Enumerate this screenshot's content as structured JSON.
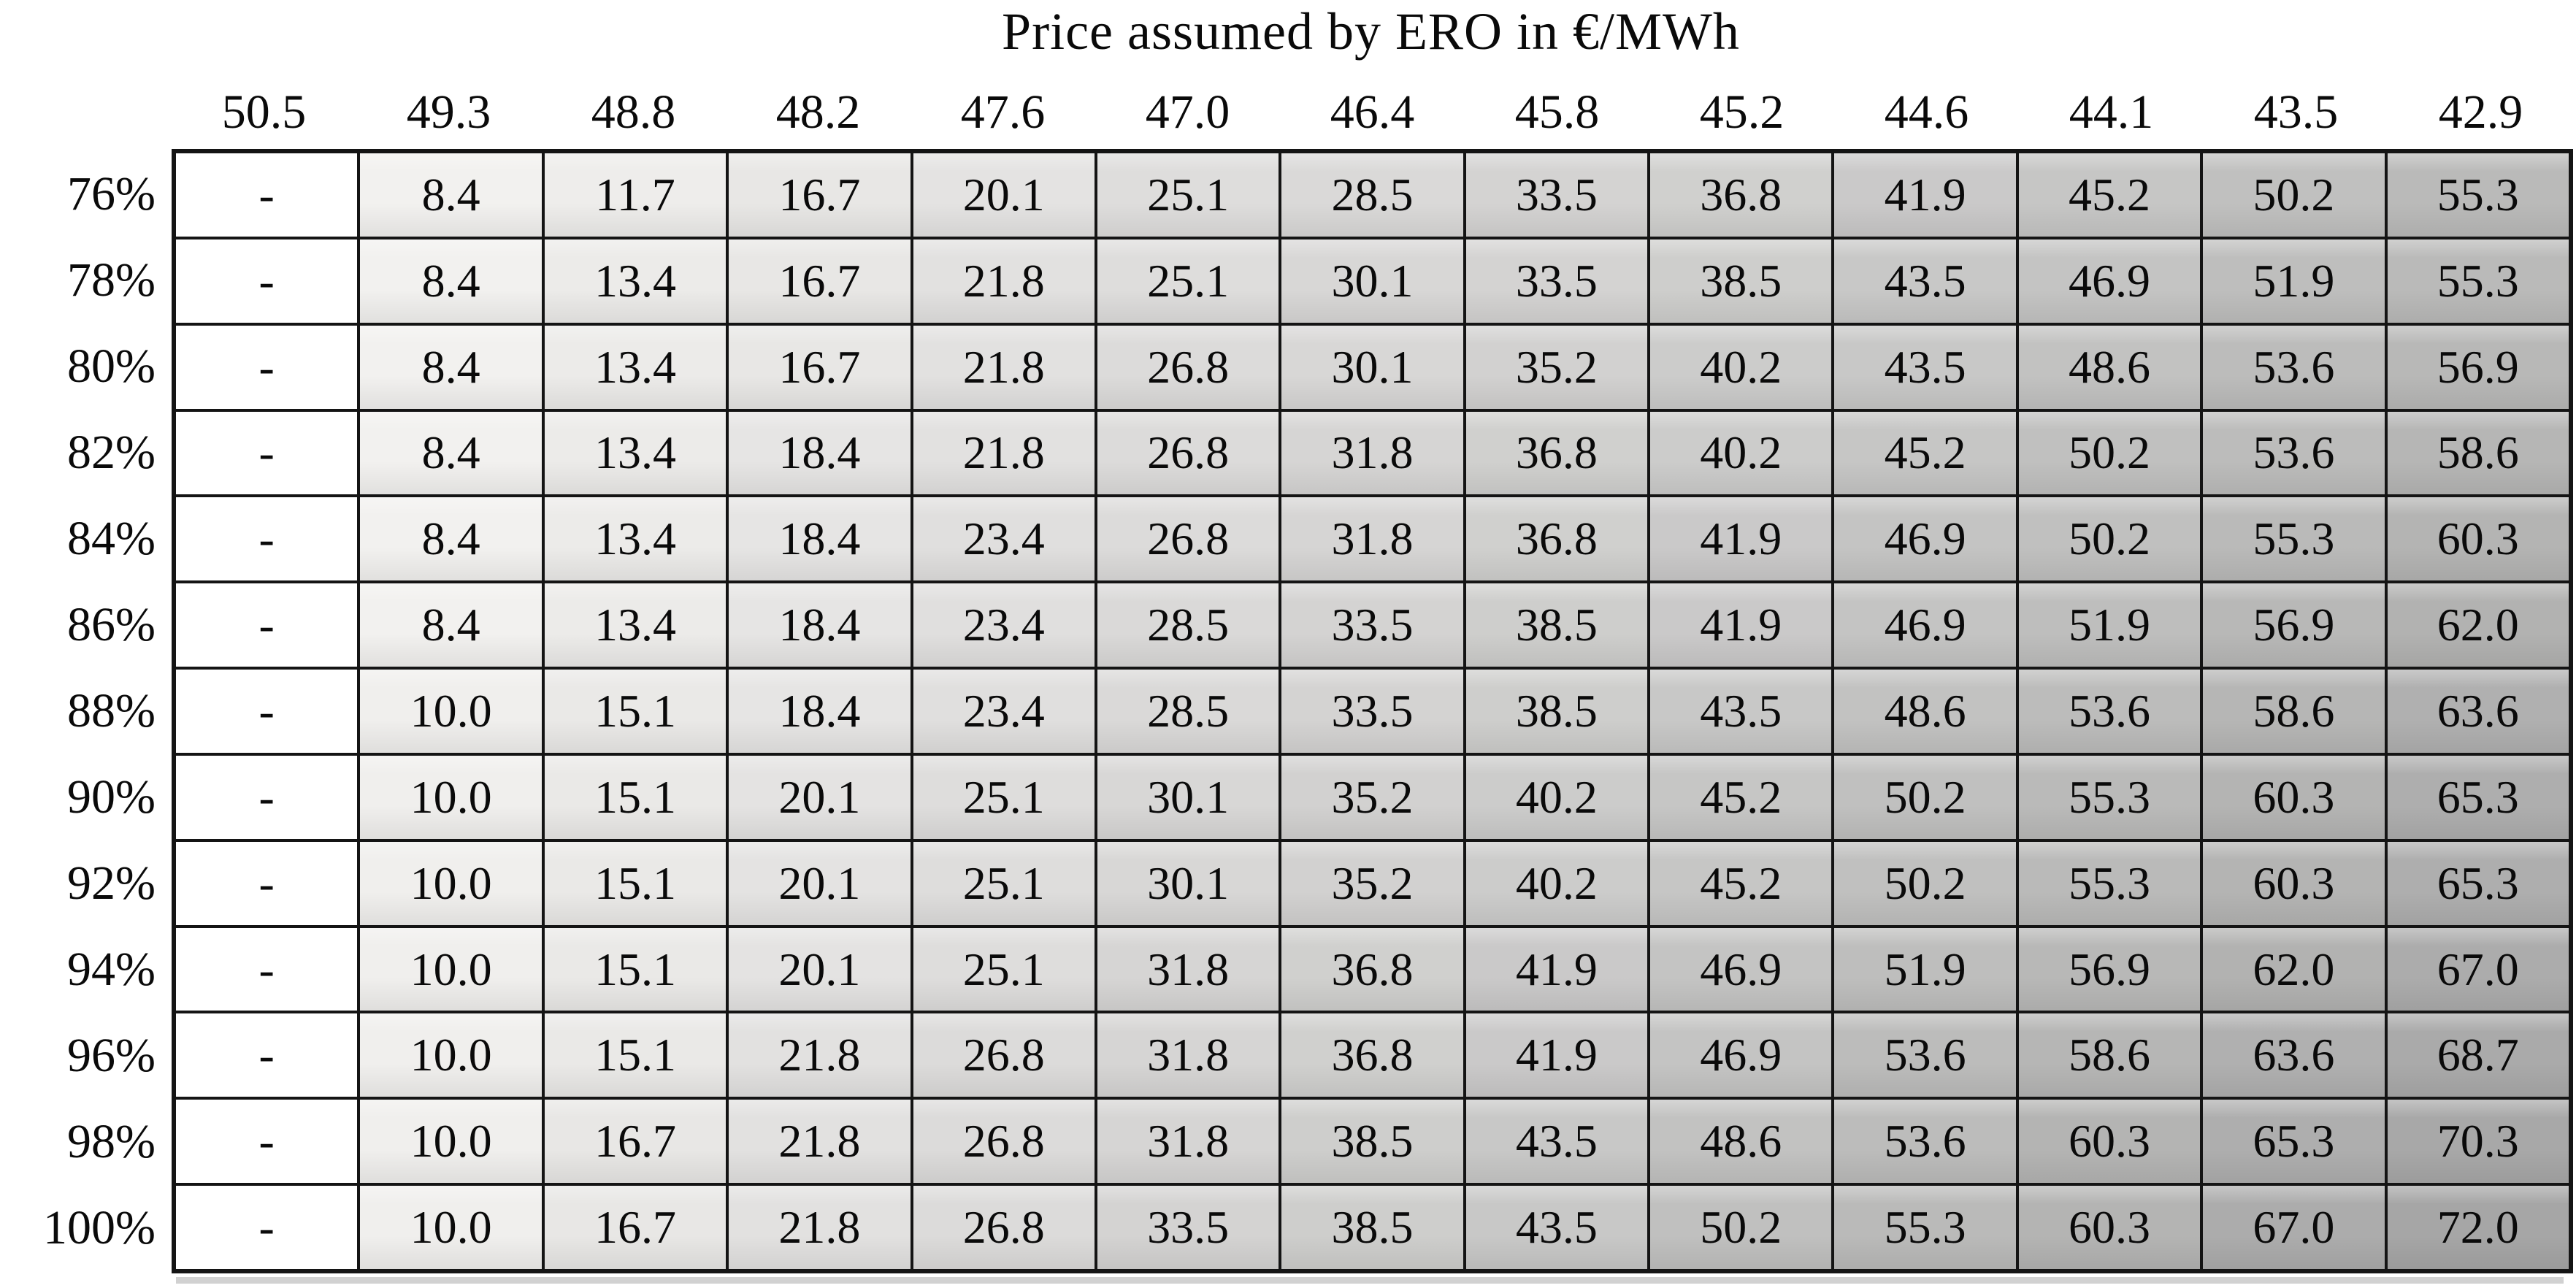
{
  "title": "Price assumed by ERO in €/MWh",
  "chart_data": {
    "type": "heatmap",
    "title": "Price assumed by ERO in €/MWh",
    "columns_axis_label": "Price assumed by ERO in €/MWh",
    "columns": [
      "50.5",
      "49.3",
      "48.8",
      "48.2",
      "47.6",
      "47.0",
      "46.4",
      "45.8",
      "45.2",
      "44.6",
      "44.1",
      "43.5",
      "42.9"
    ],
    "rows": [
      "76%",
      "78%",
      "80%",
      "82%",
      "84%",
      "86%",
      "88%",
      "90%",
      "92%",
      "94%",
      "96%",
      "98%",
      "100%"
    ],
    "cells": [
      [
        "-",
        "8.4",
        "11.7",
        "16.7",
        "20.1",
        "25.1",
        "28.5",
        "33.5",
        "36.8",
        "41.9",
        "45.2",
        "50.2",
        "55.3"
      ],
      [
        "-",
        "8.4",
        "13.4",
        "16.7",
        "21.8",
        "25.1",
        "30.1",
        "33.5",
        "38.5",
        "43.5",
        "46.9",
        "51.9",
        "55.3"
      ],
      [
        "-",
        "8.4",
        "13.4",
        "16.7",
        "21.8",
        "26.8",
        "30.1",
        "35.2",
        "40.2",
        "43.5",
        "48.6",
        "53.6",
        "56.9"
      ],
      [
        "-",
        "8.4",
        "13.4",
        "18.4",
        "21.8",
        "26.8",
        "31.8",
        "36.8",
        "40.2",
        "45.2",
        "50.2",
        "53.6",
        "58.6"
      ],
      [
        "-",
        "8.4",
        "13.4",
        "18.4",
        "23.4",
        "26.8",
        "31.8",
        "36.8",
        "41.9",
        "46.9",
        "50.2",
        "55.3",
        "60.3"
      ],
      [
        "-",
        "8.4",
        "13.4",
        "18.4",
        "23.4",
        "28.5",
        "33.5",
        "38.5",
        "41.9",
        "46.9",
        "51.9",
        "56.9",
        "62.0"
      ],
      [
        "-",
        "10.0",
        "15.1",
        "18.4",
        "23.4",
        "28.5",
        "33.5",
        "38.5",
        "43.5",
        "48.6",
        "53.6",
        "58.6",
        "63.6"
      ],
      [
        "-",
        "10.0",
        "15.1",
        "20.1",
        "25.1",
        "30.1",
        "35.2",
        "40.2",
        "45.2",
        "50.2",
        "55.3",
        "60.3",
        "65.3"
      ],
      [
        "-",
        "10.0",
        "15.1",
        "20.1",
        "25.1",
        "30.1",
        "35.2",
        "40.2",
        "45.2",
        "50.2",
        "55.3",
        "60.3",
        "65.3"
      ],
      [
        "-",
        "10.0",
        "15.1",
        "20.1",
        "25.1",
        "31.8",
        "36.8",
        "41.9",
        "46.9",
        "51.9",
        "56.9",
        "62.0",
        "67.0"
      ],
      [
        "-",
        "10.0",
        "15.1",
        "21.8",
        "26.8",
        "31.8",
        "36.8",
        "41.9",
        "46.9",
        "53.6",
        "58.6",
        "63.6",
        "68.7"
      ],
      [
        "-",
        "10.0",
        "16.7",
        "21.8",
        "26.8",
        "31.8",
        "38.5",
        "43.5",
        "48.6",
        "53.6",
        "60.3",
        "65.3",
        "70.3"
      ],
      [
        "-",
        "10.0",
        "16.7",
        "21.8",
        "26.8",
        "33.5",
        "38.5",
        "43.5",
        "50.2",
        "55.3",
        "60.3",
        "67.0",
        "72.0"
      ]
    ],
    "color_scale": {
      "empty": "#ffffff",
      "light": "#f2f1ef",
      "dark": "#a6a6a6",
      "min": 8.4,
      "max": 72.0
    },
    "grid": "on",
    "legend": "none",
    "border_color": "#141414"
  }
}
